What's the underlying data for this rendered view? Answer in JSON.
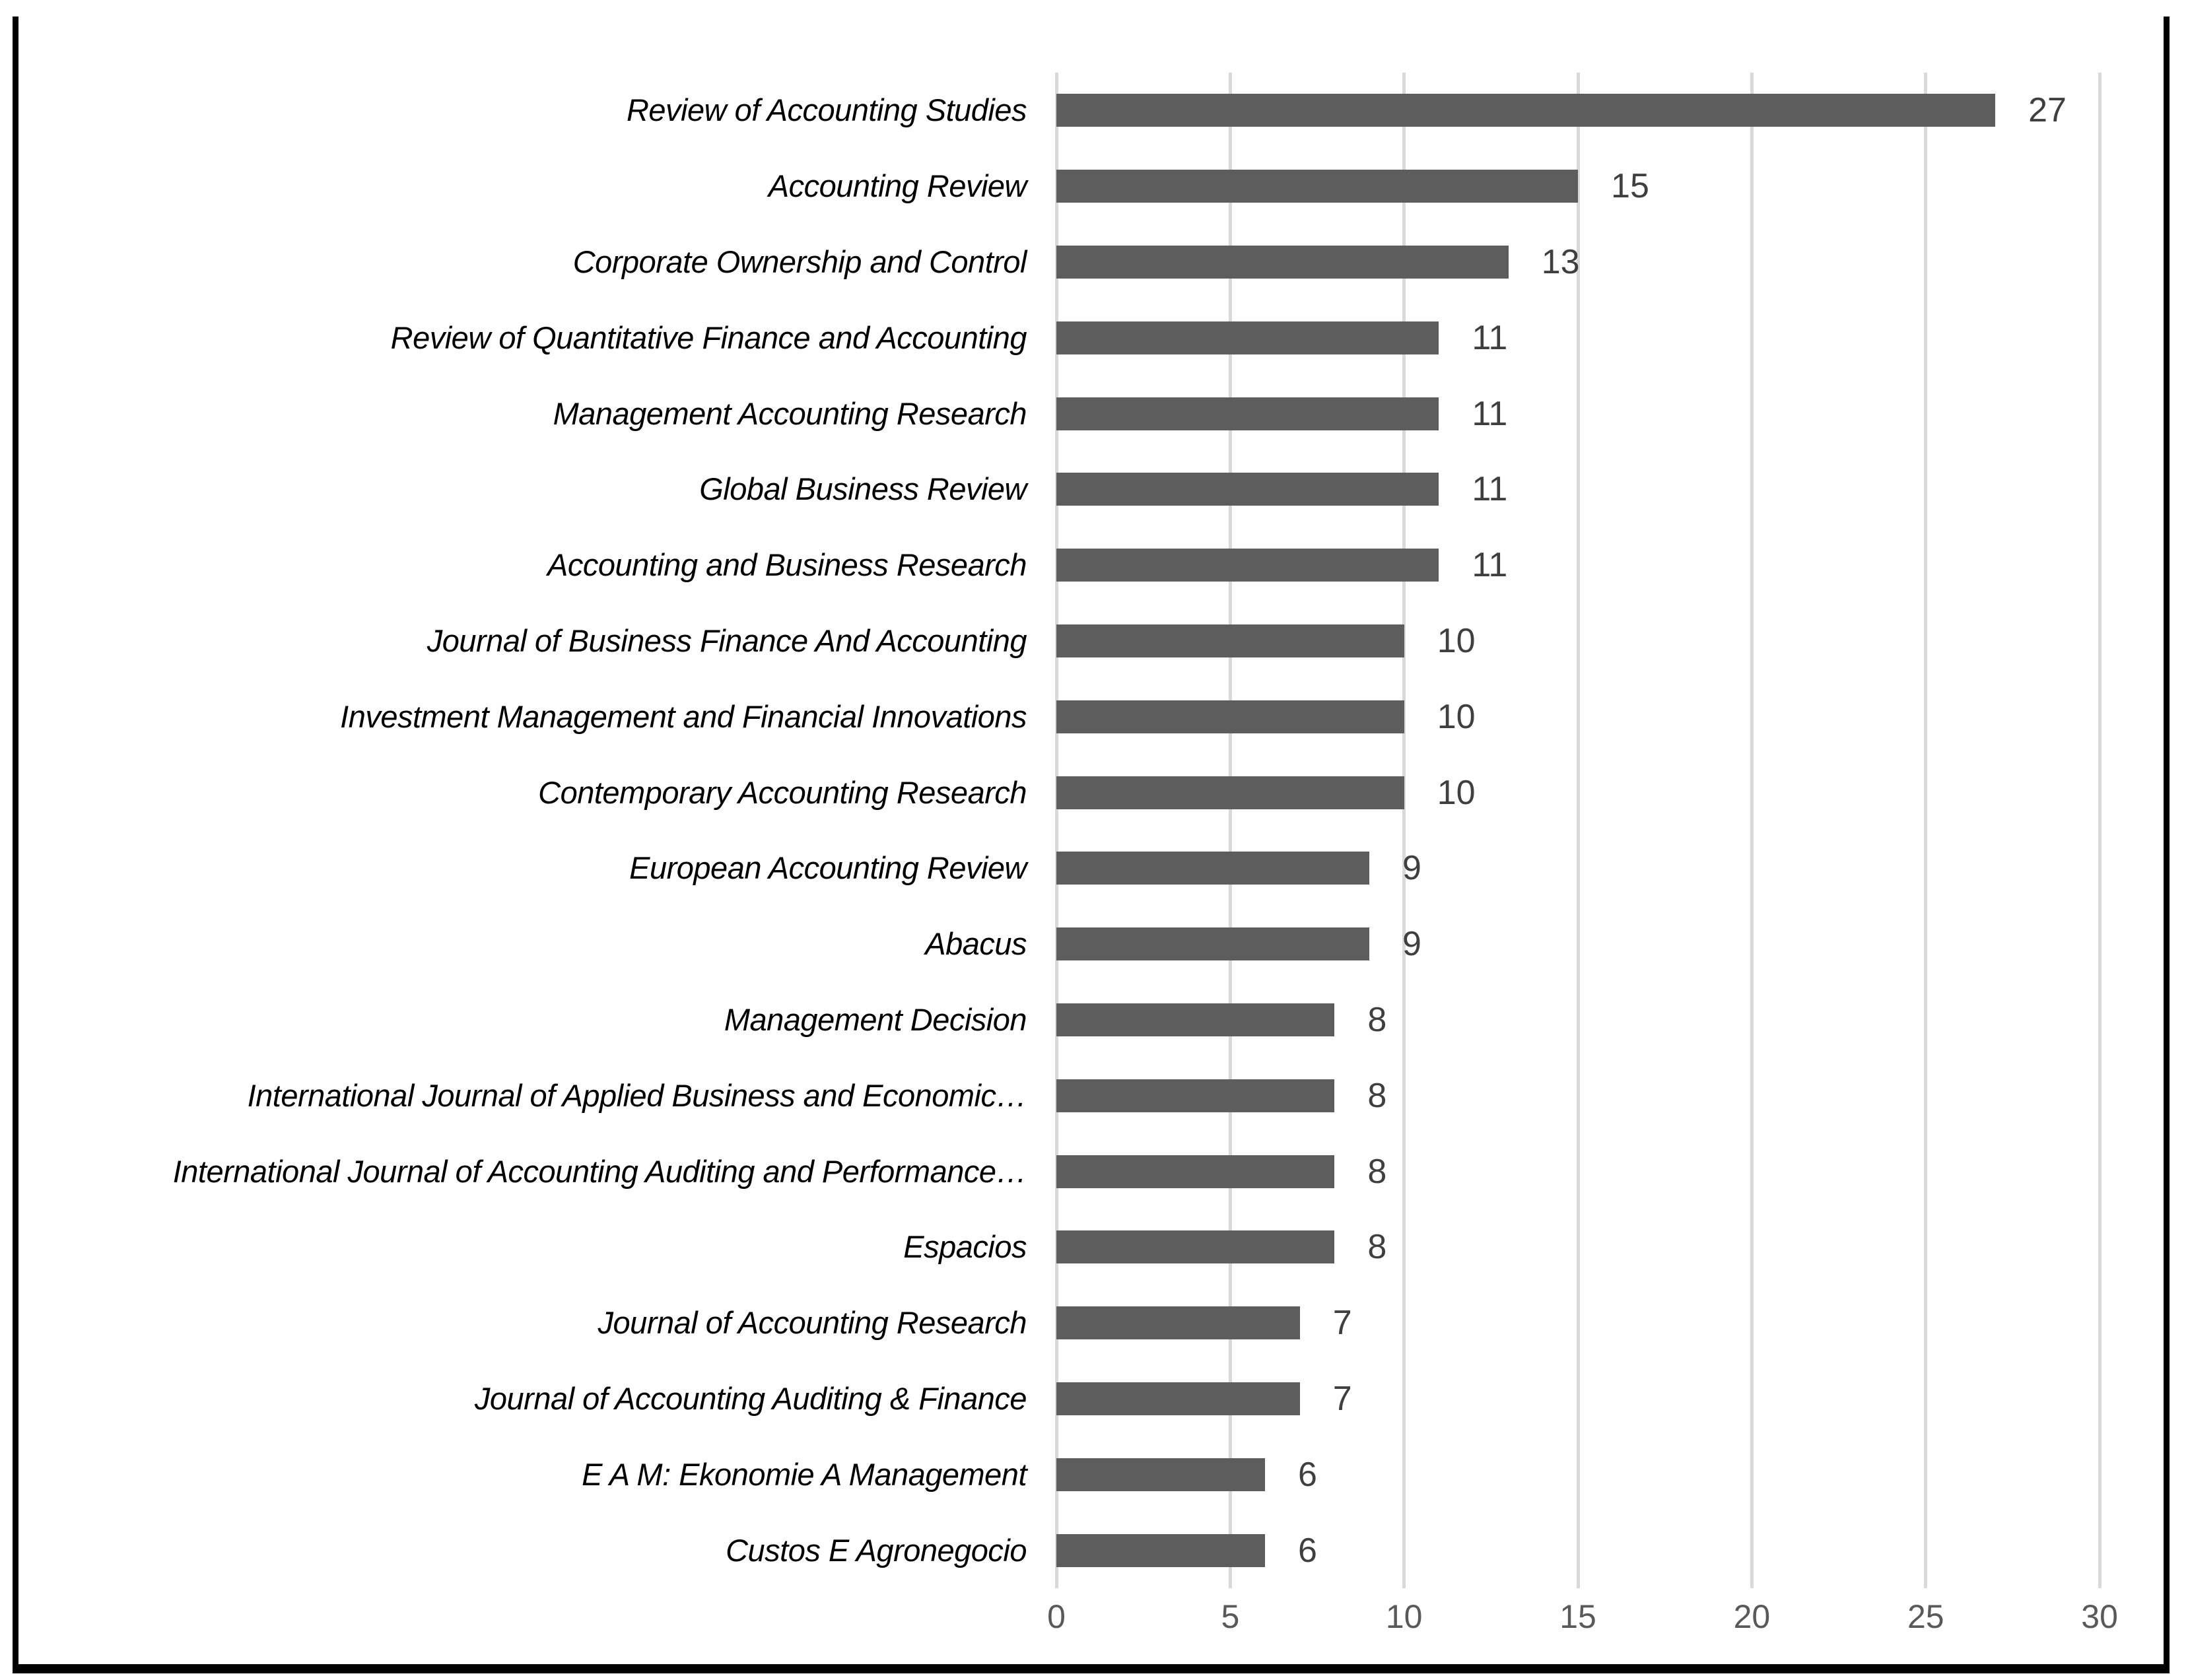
{
  "chart_data": {
    "type": "bar",
    "orientation": "horizontal",
    "title": "",
    "xlabel": "",
    "ylabel": "",
    "xlim": [
      0,
      30
    ],
    "x_ticks": [
      "0",
      "5",
      "10",
      "15",
      "20",
      "25",
      "30"
    ],
    "grid": "vertical-gridlines-on",
    "legend": "none",
    "bar_color": "#5d5d5d",
    "gridline_color": "#d9d9d9",
    "value_label_color": "#3f3f3f",
    "tick_label_color": "#595959",
    "category_label_color": "#000000",
    "frame_border_color": "#000000",
    "categories": [
      "Review of Accounting Studies",
      "Accounting Review",
      "Corporate Ownership and Control",
      "Review of Quantitative Finance and Accounting",
      "Management Accounting Research",
      "Global Business Review",
      "Accounting and Business Research",
      "Journal of Business Finance And Accounting",
      "Investment Management and Financial Innovations",
      "Contemporary Accounting Research",
      "European Accounting Review",
      "Abacus",
      "Management Decision",
      "International Journal of Applied Business and Economic…",
      "International Journal of Accounting Auditing and Performance…",
      "Espacios",
      "Journal of Accounting Research",
      "Journal of Accounting Auditing & Finance",
      "E A M: Ekonomie A Management",
      "Custos E Agronegocio"
    ],
    "values": [
      27,
      15,
      13,
      11,
      11,
      11,
      11,
      10,
      10,
      10,
      9,
      9,
      8,
      8,
      8,
      8,
      7,
      7,
      6,
      6
    ]
  }
}
